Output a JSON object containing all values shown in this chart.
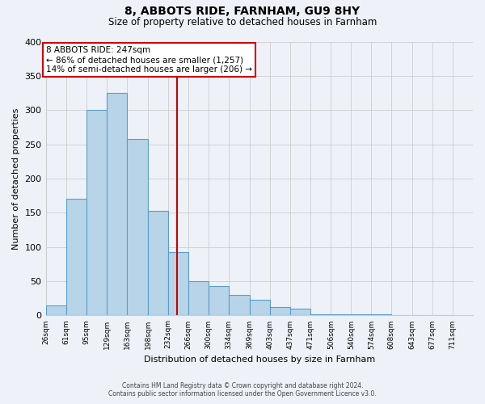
{
  "title": "8, ABBOTS RIDE, FARNHAM, GU9 8HY",
  "subtitle": "Size of property relative to detached houses in Farnham",
  "xlabel": "Distribution of detached houses by size in Farnham",
  "ylabel": "Number of detached properties",
  "bin_labels": [
    "26sqm",
    "61sqm",
    "95sqm",
    "129sqm",
    "163sqm",
    "198sqm",
    "232sqm",
    "266sqm",
    "300sqm",
    "334sqm",
    "369sqm",
    "403sqm",
    "437sqm",
    "471sqm",
    "506sqm",
    "540sqm",
    "574sqm",
    "608sqm",
    "643sqm",
    "677sqm",
    "711sqm"
  ],
  "bin_edges": [
    26,
    61,
    95,
    129,
    163,
    198,
    232,
    266,
    300,
    334,
    369,
    403,
    437,
    471,
    506,
    540,
    574,
    608,
    643,
    677,
    711
  ],
  "bar_values": [
    15,
    170,
    300,
    325,
    258,
    153,
    92,
    50,
    43,
    30,
    23,
    12,
    10,
    2,
    2,
    2,
    2,
    1,
    1,
    1
  ],
  "bar_color": "#b8d4e8",
  "bar_edge_color": "#5b9dc9",
  "property_value": 247,
  "annotation_line1": "8 ABBOTS RIDE: 247sqm",
  "annotation_line2": "← 86% of detached houses are smaller (1,257)",
  "annotation_line3": "14% of semi-detached houses are larger (206) →",
  "annotation_box_color": "#ffffff",
  "annotation_box_edge_color": "#cc0000",
  "red_line_color": "#cc0000",
  "ylim": [
    0,
    400
  ],
  "yticks": [
    0,
    50,
    100,
    150,
    200,
    250,
    300,
    350,
    400
  ],
  "grid_color": "#cccccc",
  "bg_color": "#eef2f8",
  "footer_line1": "Contains HM Land Registry data © Crown copyright and database right 2024.",
  "footer_line2": "Contains public sector information licensed under the Open Government Licence v3.0."
}
